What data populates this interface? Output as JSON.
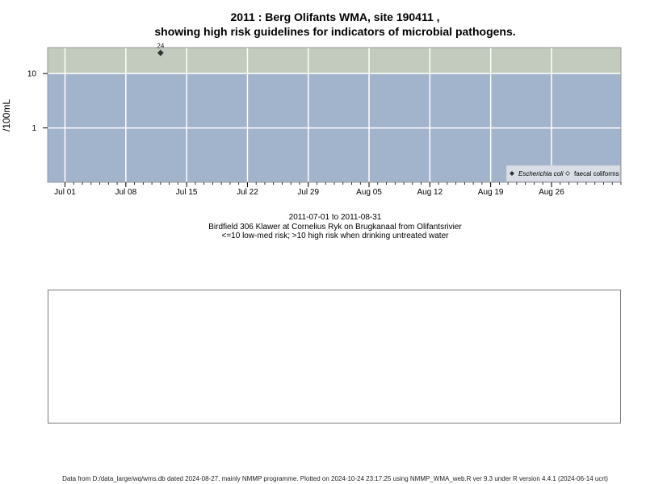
{
  "header": {
    "title_line1": "2011 : Berg Olifants WMA, site 190411 ,",
    "title_line2": "showing high risk guidelines for indicators of microbial pathogens."
  },
  "captions": {
    "date_range": "2011-07-01 to 2011-08-31",
    "site_description": "Birdfield 306 Klawer at Cornelius Ryk on Brugkanaal from Olifantsrivier",
    "risk_note": "<=10 low-med risk; >10 high risk when drinking untreated water"
  },
  "footer": {
    "text": "Data from D:/data_large/wq/wms.db dated 2024-08-27, mainly NMMP programme. Plotted on 2024-10-24 23:17:25 using NMMP_WMA_web.R ver 9.3 under R version 4.4.1 (2024-06-14 ucrt)"
  },
  "colors": {
    "high_risk_band": "#c2cbbe",
    "low_risk_band": "#a2b3cc",
    "grid": "#ffffff",
    "point": "#333333"
  },
  "chart_data": {
    "type": "scatter",
    "title": "2011 : Berg Olifants WMA, site 190411 , showing high risk guidelines for indicators of microbial pathogens.",
    "ylabel": "/100mL",
    "y_scale": "log",
    "y_ticks": [
      {
        "value": 1,
        "label": "1"
      },
      {
        "value": 10,
        "label": "10"
      }
    ],
    "ylim": [
      0.1,
      30
    ],
    "xlim": [
      "2011-06-29",
      "2011-09-03"
    ],
    "x_ticks": [
      {
        "date": "2011-07-01",
        "label": "Jul 01"
      },
      {
        "date": "2011-07-08",
        "label": "Jul 08"
      },
      {
        "date": "2011-07-15",
        "label": "Jul 15"
      },
      {
        "date": "2011-07-22",
        "label": "Jul 22"
      },
      {
        "date": "2011-07-29",
        "label": "Jul 29"
      },
      {
        "date": "2011-08-05",
        "label": "Aug 05"
      },
      {
        "date": "2011-08-12",
        "label": "Aug 12"
      },
      {
        "date": "2011-08-19",
        "label": "Aug 19"
      },
      {
        "date": "2011-08-26",
        "label": "Aug 26"
      }
    ],
    "guideline": {
      "value": 10,
      "above": "high risk",
      "below": "low-med risk"
    },
    "grid": true,
    "legend_position": "bottom-right",
    "series": [
      {
        "name": "Escherichia coli",
        "marker": "filled-diamond",
        "points": [
          {
            "x": "2011-07-12",
            "y": 24,
            "label": "24"
          }
        ]
      },
      {
        "name": "faecal coliforms",
        "marker": "open-diamond",
        "points": []
      }
    ]
  }
}
